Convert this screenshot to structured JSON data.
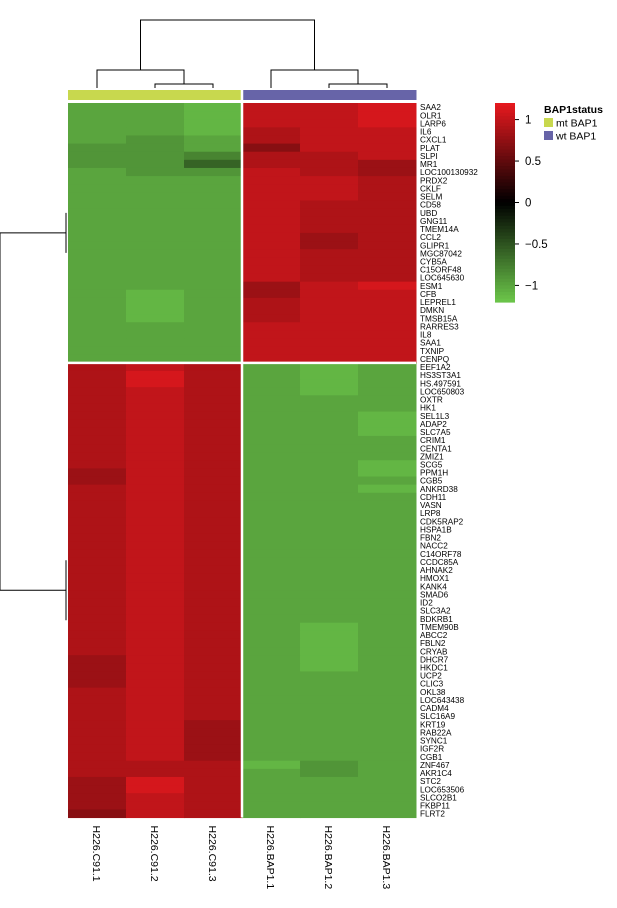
{
  "chart_data": {
    "type": "heatmap",
    "columns": [
      "H226.C91.1",
      "H226.C91.2",
      "H226.C91.3",
      "H226.BAP1.1",
      "H226.BAP1.2",
      "H226.BAP1.3"
    ],
    "column_groups": [
      "mt BAP1",
      "mt BAP1",
      "mt BAP1",
      "wt BAP1",
      "wt BAP1",
      "wt BAP1"
    ],
    "rows": [
      "SAA2",
      "OLR1",
      "LARP6",
      "IL6",
      "CXCL1",
      "PLAT",
      "SLPI",
      "MR1",
      "LOC100130932",
      "PRDX2",
      "CKLF",
      "SELM",
      "CD58",
      "UBD",
      "GNG11",
      "TMEM14A",
      "CCL2",
      "GLIPR1",
      "MGC87042",
      "CYB5A",
      "C15ORF48",
      "LOC645630",
      "ESM1",
      "CFB",
      "LEPREL1",
      "DMKN",
      "TMSB15A",
      "RARRES3",
      "IL8",
      "SAA1",
      "TXNIP",
      "CENPQ",
      "EEF1A2",
      "HS3ST3A1",
      "HS.497591",
      "LOC650803",
      "OXTR",
      "HK1",
      "SEL1L3",
      "ADAP2",
      "SLC7A5",
      "CRIM1",
      "CENTA1",
      "ZMIZ1",
      "SCG5",
      "PPM1H",
      "CGB5",
      "ANKRD38",
      "CDH11",
      "VASN",
      "LRP8",
      "CDK5RAP2",
      "HSPA1B",
      "FBN2",
      "NACC2",
      "C14ORF78",
      "CCDC85A",
      "AHNAK2",
      "HMOX1",
      "KANK4",
      "SMAD6",
      "ID2",
      "SLC3A2",
      "BDKRB1",
      "TMEM90B",
      "ABCC2",
      "FBLN2",
      "CRYAB",
      "DHCR7",
      "HKDC1",
      "UCP2",
      "CLIC3",
      "OKL38",
      "LOC643438",
      "CADM4",
      "SLC16A9",
      "KRT19",
      "RAB22A",
      "SYNC1",
      "IGF2R",
      "CGB1",
      "ZNF467",
      "AKR1C4",
      "STC2",
      "LOC653506",
      "SLCO2B1",
      "FKBP11",
      "FLRT2"
    ],
    "up_in_wt_rows": 32,
    "values_note": "",
    "values": [
      [
        -1.0,
        -1.0,
        -1.1,
        1.0,
        1.0,
        1.1
      ],
      [
        -1.0,
        -1.0,
        -1.1,
        1.0,
        1.0,
        1.1
      ],
      [
        -1.0,
        -1.0,
        -1.1,
        1.0,
        1.0,
        1.1
      ],
      [
        -1.0,
        -1.0,
        -1.1,
        0.9,
        1.0,
        1.0
      ],
      [
        -1.0,
        -0.9,
        -1.0,
        0.9,
        1.0,
        1.0
      ],
      [
        -0.9,
        -0.9,
        -1.0,
        0.7,
        1.0,
        1.0
      ],
      [
        -0.9,
        -0.9,
        -0.8,
        0.9,
        0.9,
        1.0
      ],
      [
        -0.9,
        -0.9,
        -0.6,
        0.9,
        0.9,
        0.8
      ],
      [
        -1.0,
        -0.9,
        -0.9,
        1.0,
        0.9,
        0.8
      ],
      [
        -1.0,
        -1.0,
        -1.0,
        1.0,
        1.0,
        0.9
      ],
      [
        -1.0,
        -1.0,
        -1.0,
        1.0,
        1.0,
        0.9
      ],
      [
        -1.0,
        -1.0,
        -1.0,
        1.0,
        1.0,
        0.9
      ],
      [
        -1.0,
        -1.0,
        -1.0,
        1.0,
        0.9,
        0.9
      ],
      [
        -1.0,
        -1.0,
        -1.0,
        1.0,
        0.9,
        0.9
      ],
      [
        -1.0,
        -1.0,
        -1.0,
        1.0,
        0.9,
        0.9
      ],
      [
        -1.0,
        -1.0,
        -1.0,
        1.0,
        0.9,
        0.9
      ],
      [
        -1.0,
        -1.0,
        -1.0,
        1.0,
        0.8,
        0.9
      ],
      [
        -1.0,
        -1.0,
        -1.0,
        1.0,
        0.8,
        0.9
      ],
      [
        -1.0,
        -1.0,
        -1.0,
        1.0,
        0.9,
        0.9
      ],
      [
        -1.0,
        -1.0,
        -1.0,
        1.0,
        0.9,
        0.9
      ],
      [
        -1.0,
        -1.0,
        -1.0,
        1.0,
        0.9,
        0.9
      ],
      [
        -1.0,
        -1.0,
        -1.0,
        1.0,
        0.9,
        0.9
      ],
      [
        -1.0,
        -1.0,
        -1.0,
        0.8,
        1.0,
        1.1
      ],
      [
        -1.0,
        -1.1,
        -1.0,
        0.8,
        1.0,
        1.0
      ],
      [
        -1.0,
        -1.1,
        -1.0,
        0.9,
        1.0,
        1.0
      ],
      [
        -1.0,
        -1.1,
        -1.0,
        0.9,
        1.0,
        1.0
      ],
      [
        -1.0,
        -1.1,
        -1.0,
        0.9,
        1.0,
        1.0
      ],
      [
        -1.0,
        -1.0,
        -1.0,
        1.0,
        1.0,
        1.0
      ],
      [
        -1.0,
        -1.0,
        -1.0,
        1.0,
        1.0,
        1.0
      ],
      [
        -1.0,
        -1.0,
        -1.0,
        1.0,
        1.0,
        1.0
      ],
      [
        -1.0,
        -1.0,
        -1.0,
        1.0,
        1.0,
        1.0
      ],
      [
        -1.0,
        -1.0,
        -1.0,
        1.0,
        1.0,
        1.0
      ],
      [
        0.9,
        1.0,
        0.9,
        -1.0,
        -1.1,
        -1.0
      ],
      [
        0.9,
        1.1,
        0.9,
        -1.0,
        -1.1,
        -1.0
      ],
      [
        0.9,
        1.1,
        0.9,
        -1.0,
        -1.1,
        -1.0
      ],
      [
        0.9,
        1.0,
        0.9,
        -1.0,
        -1.1,
        -1.0
      ],
      [
        0.9,
        1.0,
        0.9,
        -1.0,
        -1.0,
        -1.0
      ],
      [
        0.9,
        1.0,
        0.9,
        -1.0,
        -1.0,
        -1.0
      ],
      [
        0.9,
        1.0,
        0.9,
        -1.0,
        -1.0,
        -1.1
      ],
      [
        0.9,
        1.0,
        0.9,
        -1.0,
        -1.0,
        -1.1
      ],
      [
        0.9,
        1.0,
        0.9,
        -1.0,
        -1.0,
        -1.1
      ],
      [
        0.9,
        1.0,
        0.9,
        -1.0,
        -1.0,
        -1.0
      ],
      [
        0.9,
        1.0,
        0.9,
        -1.0,
        -1.0,
        -1.0
      ],
      [
        0.9,
        1.0,
        0.9,
        -1.0,
        -1.0,
        -1.0
      ],
      [
        0.9,
        1.0,
        0.9,
        -1.0,
        -1.0,
        -1.1
      ],
      [
        0.8,
        1.0,
        0.9,
        -1.0,
        -1.0,
        -1.1
      ],
      [
        0.8,
        1.0,
        0.9,
        -1.0,
        -1.0,
        -1.0
      ],
      [
        0.9,
        1.0,
        0.9,
        -1.0,
        -1.0,
        -1.1
      ],
      [
        0.9,
        1.0,
        0.9,
        -1.0,
        -1.0,
        -1.0
      ],
      [
        0.9,
        1.0,
        0.9,
        -1.0,
        -1.0,
        -1.0
      ],
      [
        0.9,
        1.0,
        0.9,
        -1.0,
        -1.0,
        -1.0
      ],
      [
        0.9,
        1.0,
        0.9,
        -1.0,
        -1.0,
        -1.0
      ],
      [
        0.9,
        1.0,
        0.9,
        -1.0,
        -1.0,
        -1.0
      ],
      [
        0.9,
        1.0,
        0.9,
        -1.0,
        -1.0,
        -1.0
      ],
      [
        0.9,
        1.0,
        0.9,
        -1.0,
        -1.0,
        -1.0
      ],
      [
        0.9,
        1.0,
        0.9,
        -1.0,
        -1.0,
        -1.0
      ],
      [
        0.9,
        1.0,
        0.9,
        -1.0,
        -1.0,
        -1.0
      ],
      [
        0.9,
        1.0,
        0.9,
        -1.0,
        -1.0,
        -1.0
      ],
      [
        0.9,
        1.0,
        0.9,
        -1.0,
        -1.0,
        -1.0
      ],
      [
        0.9,
        1.0,
        0.9,
        -1.0,
        -1.0,
        -1.0
      ],
      [
        0.9,
        1.0,
        0.9,
        -1.0,
        -1.0,
        -1.0
      ],
      [
        0.9,
        1.0,
        0.9,
        -1.0,
        -1.0,
        -1.0
      ],
      [
        0.9,
        1.0,
        0.9,
        -1.0,
        -1.0,
        -1.0
      ],
      [
        0.9,
        1.0,
        0.9,
        -1.0,
        -1.0,
        -1.0
      ],
      [
        0.9,
        1.0,
        0.9,
        -1.0,
        -1.1,
        -1.0
      ],
      [
        0.9,
        1.0,
        0.9,
        -1.0,
        -1.1,
        -1.0
      ],
      [
        0.9,
        1.0,
        0.9,
        -1.0,
        -1.1,
        -1.0
      ],
      [
        0.9,
        1.0,
        0.9,
        -1.0,
        -1.1,
        -1.0
      ],
      [
        0.8,
        1.0,
        0.9,
        -1.0,
        -1.1,
        -1.0
      ],
      [
        0.8,
        1.0,
        0.9,
        -1.0,
        -1.1,
        -1.0
      ],
      [
        0.8,
        1.0,
        0.9,
        -1.0,
        -1.0,
        -1.0
      ],
      [
        0.8,
        1.0,
        0.9,
        -1.0,
        -1.0,
        -1.0
      ],
      [
        0.9,
        1.0,
        0.9,
        -1.0,
        -1.0,
        -1.0
      ],
      [
        0.9,
        1.0,
        0.9,
        -1.0,
        -1.0,
        -1.0
      ],
      [
        0.9,
        1.0,
        0.9,
        -1.0,
        -1.0,
        -1.0
      ],
      [
        0.9,
        1.0,
        0.9,
        -1.0,
        -1.0,
        -1.0
      ],
      [
        0.9,
        1.0,
        0.8,
        -1.0,
        -1.0,
        -1.0
      ],
      [
        0.9,
        1.0,
        0.8,
        -1.0,
        -1.0,
        -1.0
      ],
      [
        0.9,
        1.0,
        0.8,
        -1.0,
        -1.0,
        -1.0
      ],
      [
        0.9,
        1.0,
        0.8,
        -1.0,
        -1.0,
        -1.0
      ],
      [
        0.9,
        1.0,
        0.8,
        -1.0,
        -1.0,
        -1.0
      ],
      [
        0.9,
        0.9,
        0.9,
        -1.1,
        -0.9,
        -1.0
      ],
      [
        0.9,
        0.9,
        0.9,
        -1.0,
        -0.9,
        -1.0
      ],
      [
        0.8,
        1.1,
        0.9,
        -1.0,
        -1.0,
        -1.0
      ],
      [
        0.8,
        1.1,
        0.9,
        -1.0,
        -1.0,
        -1.0
      ],
      [
        0.8,
        1.0,
        0.9,
        -1.0,
        -1.0,
        -1.0
      ],
      [
        0.8,
        1.0,
        0.9,
        -1.0,
        -1.0,
        -1.0
      ],
      [
        0.7,
        1.0,
        0.9,
        -1.0,
        -1.0,
        -1.0
      ]
    ],
    "color_scale": {
      "title": "",
      "ticks": [
        1,
        0.5,
        0,
        -0.5,
        -1
      ],
      "tick_labels": [
        "1",
        "0.5",
        "0",
        "−0.5",
        "−1"
      ],
      "high_color": "#e8191f",
      "mid_color": "#000000",
      "low_color": "#6cc64a",
      "range": [
        -1.2,
        1.2
      ]
    },
    "annotation_legend": {
      "title": "BAP1status",
      "items": [
        {
          "label": "mt BAP1",
          "color": "#c8d84e"
        },
        {
          "label": "wt BAP1",
          "color": "#6764a8"
        }
      ]
    },
    "column_dendrogram": true,
    "row_dendrogram": true
  }
}
